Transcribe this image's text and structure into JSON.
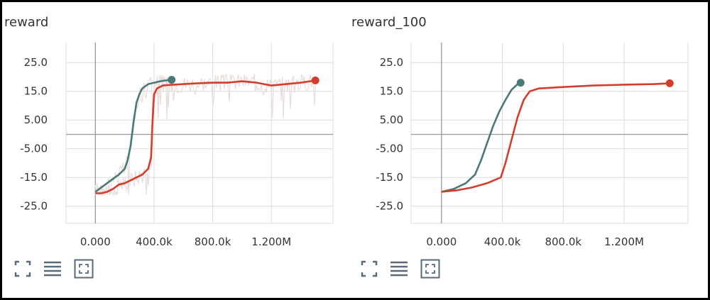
{
  "charts": [
    {
      "title": "reward",
      "toolbar": {
        "icons": [
          "fullscreen-icon",
          "data-table-icon",
          "fit-domain-icon"
        ]
      }
    },
    {
      "title": "reward_100",
      "toolbar": {
        "icons": [
          "fullscreen-icon",
          "data-table-icon",
          "fit-domain-icon"
        ]
      }
    }
  ],
  "colors": {
    "teal": "#4a7a78",
    "red": "#d43d2e",
    "raw": "#e8dcda",
    "grid": "#dcdcdc",
    "axis": "#9a9a9a"
  },
  "chart_data": [
    {
      "type": "line",
      "title": "reward",
      "xlabel": "",
      "ylabel": "",
      "xlim": [
        -200000,
        1620000
      ],
      "ylim": [
        -31,
        30
      ],
      "x_ticks": [
        "0.000",
        "400.0k",
        "800.0k",
        "1.200M"
      ],
      "x_tick_values": [
        0,
        400000,
        800000,
        1200000
      ],
      "y_ticks": [
        "25.0",
        "15.0",
        "5.00",
        "-5.00",
        "-15.0",
        "-25.0"
      ],
      "y_tick_values": [
        25,
        15,
        5,
        -5,
        -15,
        -25
      ],
      "grid": true,
      "series": [
        {
          "color": "#4a7a78",
          "x": [
            0,
            40000,
            80000,
            120000,
            160000,
            200000,
            220000,
            240000,
            260000,
            280000,
            300000,
            320000,
            360000,
            400000,
            440000,
            480000,
            520000
          ],
          "y": [
            -20,
            -18.5,
            -17,
            -15.5,
            -14,
            -12,
            -9,
            -4,
            4,
            11,
            14,
            16,
            17.5,
            18,
            18.5,
            18.8,
            19
          ]
        },
        {
          "color": "#d43d2e",
          "x": [
            0,
            40000,
            80000,
            120000,
            160000,
            200000,
            240000,
            280000,
            320000,
            360000,
            380000,
            390000,
            400000,
            420000,
            460000,
            500000,
            600000,
            700000,
            800000,
            900000,
            1000000,
            1100000,
            1200000,
            1300000,
            1400000,
            1500000
          ],
          "y": [
            -20.5,
            -20.5,
            -20,
            -19,
            -17.5,
            -17,
            -16,
            -15,
            -14,
            -12,
            -8,
            5,
            14,
            16,
            17,
            17.2,
            17.5,
            17.8,
            18,
            18,
            18.5,
            18,
            17,
            17.5,
            18,
            18.8
          ]
        }
      ]
    },
    {
      "type": "line",
      "title": "reward_100",
      "xlabel": "",
      "ylabel": "",
      "xlim": [
        -200000,
        1620000
      ],
      "ylim": [
        -31,
        30
      ],
      "x_ticks": [
        "0.000",
        "400.0k",
        "800.0k",
        "1.200M"
      ],
      "x_tick_values": [
        0,
        400000,
        800000,
        1200000
      ],
      "y_ticks": [
        "25.0",
        "15.0",
        "5.00",
        "-5.00",
        "-15.0",
        "-25.0"
      ],
      "y_tick_values": [
        25,
        15,
        5,
        -5,
        -15,
        -25
      ],
      "grid": true,
      "series": [
        {
          "color": "#4a7a78",
          "x": [
            0,
            80000,
            160000,
            220000,
            260000,
            300000,
            340000,
            380000,
            420000,
            460000,
            500000,
            520000
          ],
          "y": [
            -20,
            -19,
            -17,
            -14,
            -9,
            -3,
            3,
            8,
            12,
            15.5,
            17.5,
            18
          ]
        },
        {
          "color": "#d43d2e",
          "x": [
            0,
            100000,
            200000,
            300000,
            390000,
            420000,
            460000,
            500000,
            540000,
            580000,
            640000,
            800000,
            1000000,
            1200000,
            1400000,
            1500000
          ],
          "y": [
            -20,
            -19.5,
            -18.5,
            -17,
            -15,
            -10,
            -2,
            6,
            12,
            15,
            16,
            16.5,
            17,
            17.3,
            17.5,
            17.8
          ]
        }
      ]
    }
  ]
}
